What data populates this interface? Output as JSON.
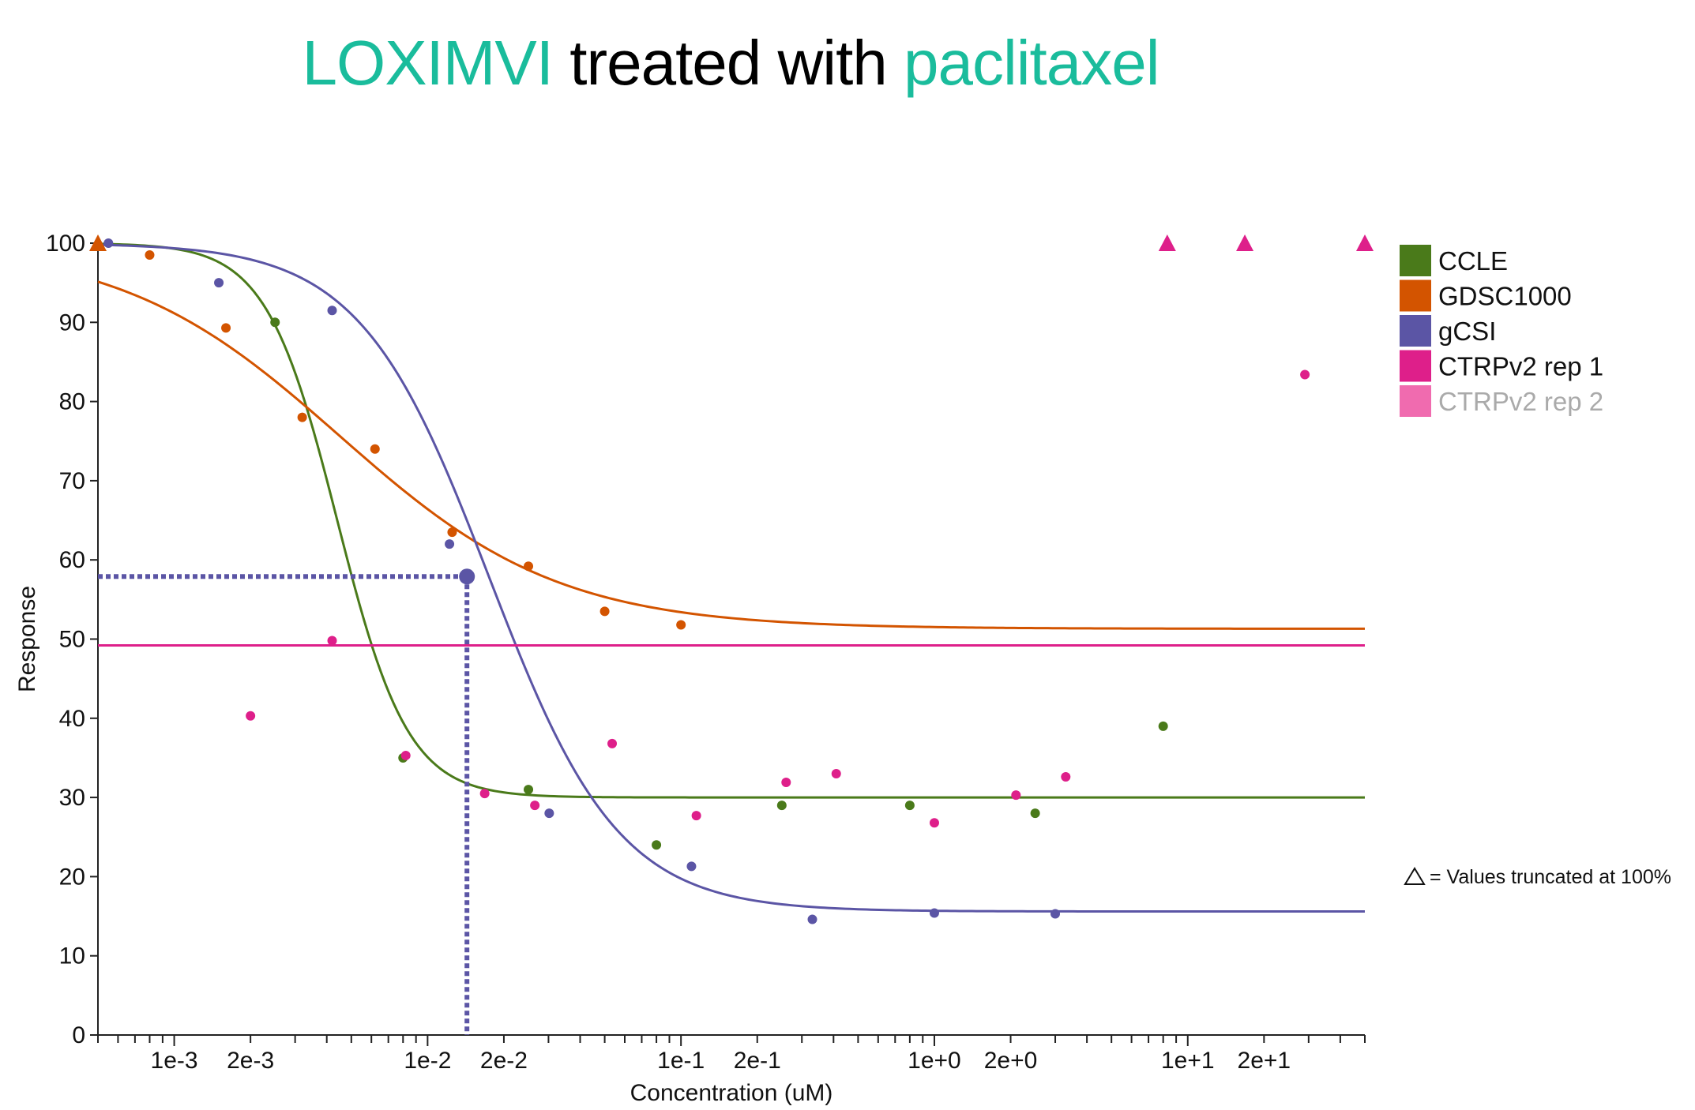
{
  "title": {
    "cell_line": "LOXIMVI",
    "middle": " treated with ",
    "drug": "paclitaxel",
    "highlight_color": "#1abc9c"
  },
  "chart_data": {
    "type": "scatter",
    "xlabel": "Concentration (uM)",
    "ylabel": "Response",
    "x_scale": "log10",
    "xlim": [
      0.0005,
      50
    ],
    "ylim": [
      0,
      100
    ],
    "x_tick_labels": [
      {
        "label": "1e-3",
        "value": 0.001
      },
      {
        "label": "2e-3",
        "value": 0.002
      },
      {
        "label": "1e-2",
        "value": 0.01
      },
      {
        "label": "2e-2",
        "value": 0.02
      },
      {
        "label": "1e-1",
        "value": 0.1
      },
      {
        "label": "2e-1",
        "value": 0.2
      },
      {
        "label": "1e+0",
        "value": 1
      },
      {
        "label": "2e+0",
        "value": 2
      },
      {
        "label": "1e+1",
        "value": 10
      },
      {
        "label": "2e+1",
        "value": 20
      }
    ],
    "y_ticks": [
      0,
      10,
      20,
      30,
      40,
      50,
      60,
      70,
      80,
      90,
      100
    ],
    "legend_position": "right",
    "truncation_note": "= Values truncated at 100%",
    "series": [
      {
        "name": "CCLE",
        "color": "#4a7a1a",
        "points": [
          [
            0.0025,
            90
          ],
          [
            0.008,
            35
          ],
          [
            0.025,
            31
          ],
          [
            0.08,
            24
          ],
          [
            0.25,
            29
          ],
          [
            0.8,
            29
          ],
          [
            2.5,
            28
          ],
          [
            8,
            39
          ]
        ],
        "truncated": [],
        "curve": {
          "top": 100,
          "bottom": 30,
          "ec50": 0.0044,
          "hill": 3.1
        }
      },
      {
        "name": "GDSC1000",
        "color": "#d35400",
        "points": [
          [
            0.0008,
            98.5
          ],
          [
            0.0016,
            89.3
          ],
          [
            0.0032,
            78
          ],
          [
            0.0062,
            74
          ],
          [
            0.0125,
            63.5
          ],
          [
            0.025,
            59.2
          ],
          [
            0.05,
            53.5
          ],
          [
            0.1,
            51.8
          ]
        ],
        "truncated": [
          0.0005
        ],
        "curve": {
          "top": 100,
          "bottom": 51.3,
          "ec50": 0.0045,
          "hill": 1.0
        }
      },
      {
        "name": "gCSI",
        "color": "#5b55a5",
        "points": [
          [
            0.00055,
            100
          ],
          [
            0.0015,
            95
          ],
          [
            0.0042,
            91.5
          ],
          [
            0.0122,
            62
          ],
          [
            0.0302,
            28
          ],
          [
            0.11,
            21.3
          ],
          [
            0.33,
            14.6
          ],
          [
            1.0,
            15.4
          ],
          [
            3.0,
            15.3
          ]
        ],
        "truncated": [],
        "curve": {
          "top": 100,
          "bottom": 15.6,
          "ec50": 0.0175,
          "hill": 1.7
        },
        "marker": {
          "x": 0.0143,
          "y": 57.9
        }
      },
      {
        "name": "CTRPv2 rep 1",
        "color": "#de1f8a",
        "points": [
          [
            0.002,
            40.3
          ],
          [
            0.0042,
            49.8
          ],
          [
            0.0082,
            35.3
          ],
          [
            0.0168,
            30.5
          ],
          [
            0.0265,
            29
          ],
          [
            0.0535,
            36.8
          ],
          [
            0.115,
            27.7
          ],
          [
            0.26,
            31.9
          ],
          [
            0.41,
            33
          ],
          [
            1.0,
            26.8
          ],
          [
            2.1,
            30.3
          ],
          [
            3.3,
            32.6
          ],
          [
            29,
            83.4
          ]
        ],
        "truncated": [
          8.3,
          16.8,
          50
        ],
        "flat_line": 49.2
      },
      {
        "name": "CTRPv2 rep 2",
        "color": "#f06baf",
        "label_color": "#aaaaaa",
        "points": [],
        "truncated": []
      }
    ]
  }
}
